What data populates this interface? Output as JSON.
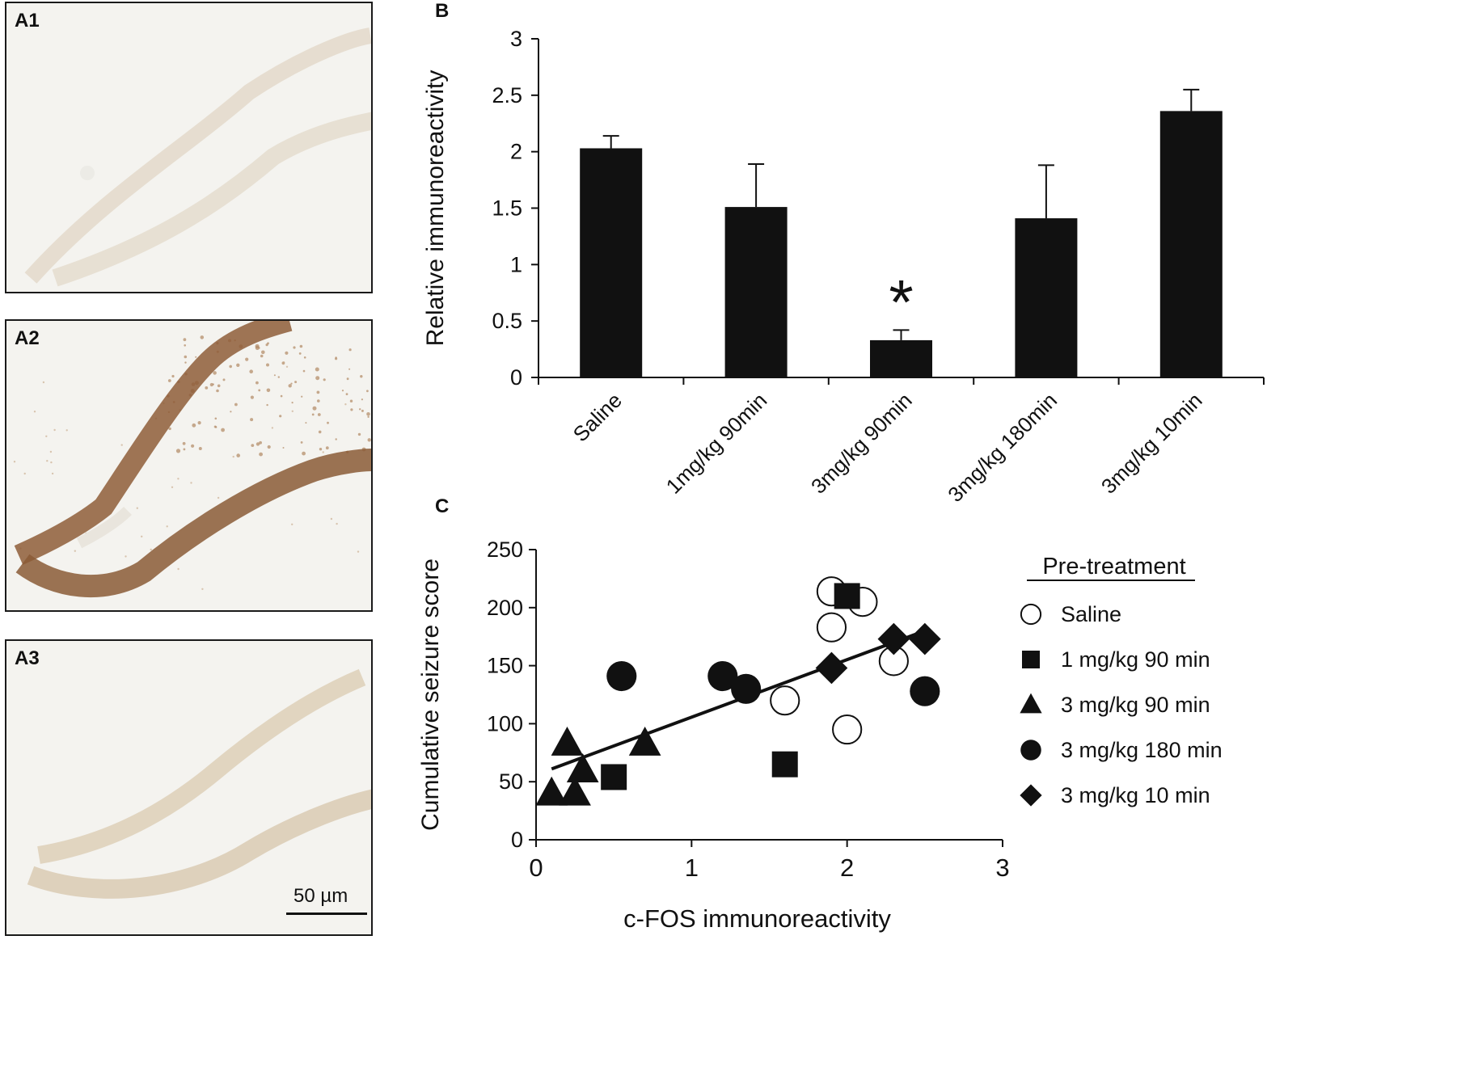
{
  "panels": {
    "a1": {
      "label": "A1"
    },
    "a2": {
      "label": "A2"
    },
    "a3": {
      "label": "A3",
      "scale_bar": "50 µm"
    },
    "b": {
      "label": "B"
    },
    "c": {
      "label": "C"
    }
  },
  "colors": {
    "bar_fill": "#111111",
    "tissue_bg": "#f4f3ef",
    "stain_faint": "#d9cdb8",
    "stain_strong": "#8a5a36"
  },
  "chart_data": [
    {
      "id": "B",
      "type": "bar",
      "title": "",
      "xlabel": "",
      "ylabel": "Relative immunoreactivity",
      "categories": [
        "Saline",
        "1mg/kg 90min",
        "3mg/kg 90min",
        "3mg/kg 180min",
        "3mg/kg 10min"
      ],
      "values": [
        2.03,
        1.51,
        0.33,
        1.41,
        2.36
      ],
      "errors": [
        0.11,
        0.38,
        0.09,
        0.47,
        0.19
      ],
      "significance": [
        "",
        "",
        "*",
        "",
        ""
      ],
      "ylim": [
        0,
        3
      ],
      "yticks": [
        0,
        0.5,
        1,
        1.5,
        2,
        2.5,
        3
      ],
      "ytick_labels": [
        "0",
        "0.5",
        "1",
        "1.5",
        "2",
        "2.5",
        "3"
      ]
    },
    {
      "id": "C",
      "type": "scatter",
      "title": "",
      "xlabel": "c-FOS immunoreactivity",
      "ylabel": "Cumulative seizure score",
      "xlim": [
        0,
        3
      ],
      "ylim": [
        0,
        250
      ],
      "xticks": [
        0,
        1,
        2,
        3
      ],
      "xtick_labels": [
        "0",
        "1",
        "2",
        "3"
      ],
      "yticks": [
        0,
        50,
        100,
        150,
        200,
        250
      ],
      "ytick_labels": [
        "0",
        "50",
        "100",
        "150",
        "200",
        "250"
      ],
      "legend_title": "Pre-treatment",
      "legend_position": "right",
      "series": [
        {
          "name": "Saline",
          "marker": "circle-open",
          "x": [
            1.9,
            1.9,
            2.1,
            2.3,
            1.6,
            2.0
          ],
          "y": [
            214,
            183,
            205,
            154,
            120,
            95
          ]
        },
        {
          "name": "1 mg/kg 90 min",
          "marker": "square",
          "x": [
            2.0,
            1.6,
            0.5
          ],
          "y": [
            210,
            65,
            54
          ]
        },
        {
          "name": "3 mg/kg 90 min",
          "marker": "triangle",
          "x": [
            0.2,
            0.7,
            0.3,
            0.1,
            0.25
          ],
          "y": [
            83,
            83,
            60,
            40,
            40
          ]
        },
        {
          "name": "3 mg/kg 180 min",
          "marker": "circle",
          "x": [
            0.55,
            1.2,
            1.35,
            2.5
          ],
          "y": [
            141,
            141,
            130,
            128
          ]
        },
        {
          "name": "3 mg/kg 10 min",
          "marker": "diamond",
          "x": [
            1.9,
            2.3,
            2.5
          ],
          "y": [
            148,
            173,
            173
          ]
        }
      ],
      "trendline": {
        "x": [
          0.1,
          2.5
        ],
        "y": [
          61,
          180
        ]
      }
    }
  ]
}
